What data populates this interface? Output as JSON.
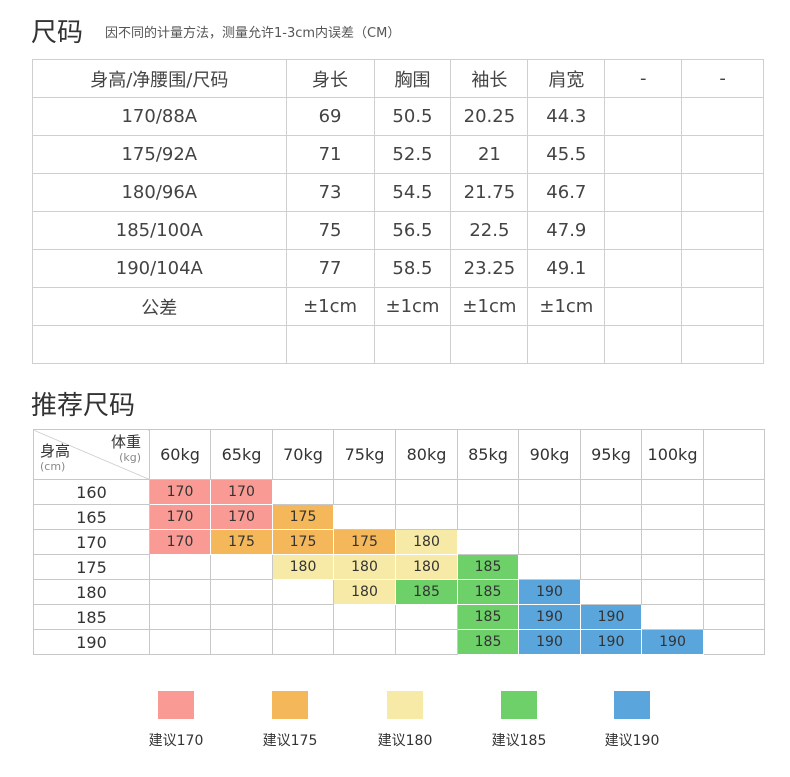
{
  "header": {
    "title": "尺码",
    "note": "因不同的计量方法，测量允许1-3cm内误差（CM）"
  },
  "size_table": {
    "columns": [
      "身高/净腰围/尺码",
      "身长",
      "胸围",
      "袖长",
      "肩宽",
      "-",
      "-"
    ],
    "rows": [
      [
        "170/88A",
        "69",
        "50.5",
        "20.25",
        "44.3",
        "",
        ""
      ],
      [
        "175/92A",
        "71",
        "52.5",
        "21",
        "45.5",
        "",
        ""
      ],
      [
        "180/96A",
        "73",
        "54.5",
        "21.75",
        "46.7",
        "",
        ""
      ],
      [
        "185/100A",
        "75",
        "56.5",
        "22.5",
        "47.9",
        "",
        ""
      ],
      [
        "190/104A",
        "77",
        "58.5",
        "23.25",
        "49.1",
        "",
        ""
      ],
      [
        "公差",
        "±1cm",
        "±1cm",
        "±1cm",
        "±1cm",
        "",
        ""
      ],
      [
        "",
        "",
        "",
        "",
        "",
        "",
        ""
      ]
    ]
  },
  "recommend": {
    "title": "推荐尺码",
    "corner_weight": "体重",
    "corner_weight_unit": "(kg)",
    "corner_height": "身高",
    "corner_height_unit": "(cm)",
    "weights": [
      "60kg",
      "65kg",
      "70kg",
      "75kg",
      "80kg",
      "85kg",
      "90kg",
      "95kg",
      "100kg"
    ],
    "heights": [
      "160",
      "165",
      "170",
      "175",
      "180",
      "185",
      "190"
    ],
    "grid": [
      [
        "170",
        "170",
        "",
        "",
        "",
        "",
        "",
        "",
        ""
      ],
      [
        "170",
        "170",
        "175",
        "",
        "",
        "",
        "",
        "",
        ""
      ],
      [
        "170",
        "175",
        "175",
        "175",
        "180",
        "",
        "",
        "",
        ""
      ],
      [
        "",
        "",
        "180",
        "180",
        "180",
        "185",
        "",
        "",
        ""
      ],
      [
        "",
        "",
        "",
        "180",
        "185",
        "185",
        "190",
        "",
        ""
      ],
      [
        "",
        "",
        "",
        "",
        "",
        "185",
        "190",
        "190",
        ""
      ],
      [
        "",
        "",
        "",
        "",
        "",
        "185",
        "190",
        "190",
        "190"
      ]
    ],
    "colors": {
      "170": "#f99b94",
      "175": "#f4b85a",
      "180": "#f6eaa6",
      "185": "#6dd068",
      "190": "#5aa5dc"
    }
  },
  "legend": [
    {
      "key": "170",
      "label": "建议170",
      "color": "#f99b94"
    },
    {
      "key": "175",
      "label": "建议175",
      "color": "#f4b85a"
    },
    {
      "key": "180",
      "label": "建议180",
      "color": "#f6eaa6"
    },
    {
      "key": "185",
      "label": "建议185",
      "color": "#6dd068"
    },
    {
      "key": "190",
      "label": "建议190",
      "color": "#5aa5dc"
    }
  ]
}
